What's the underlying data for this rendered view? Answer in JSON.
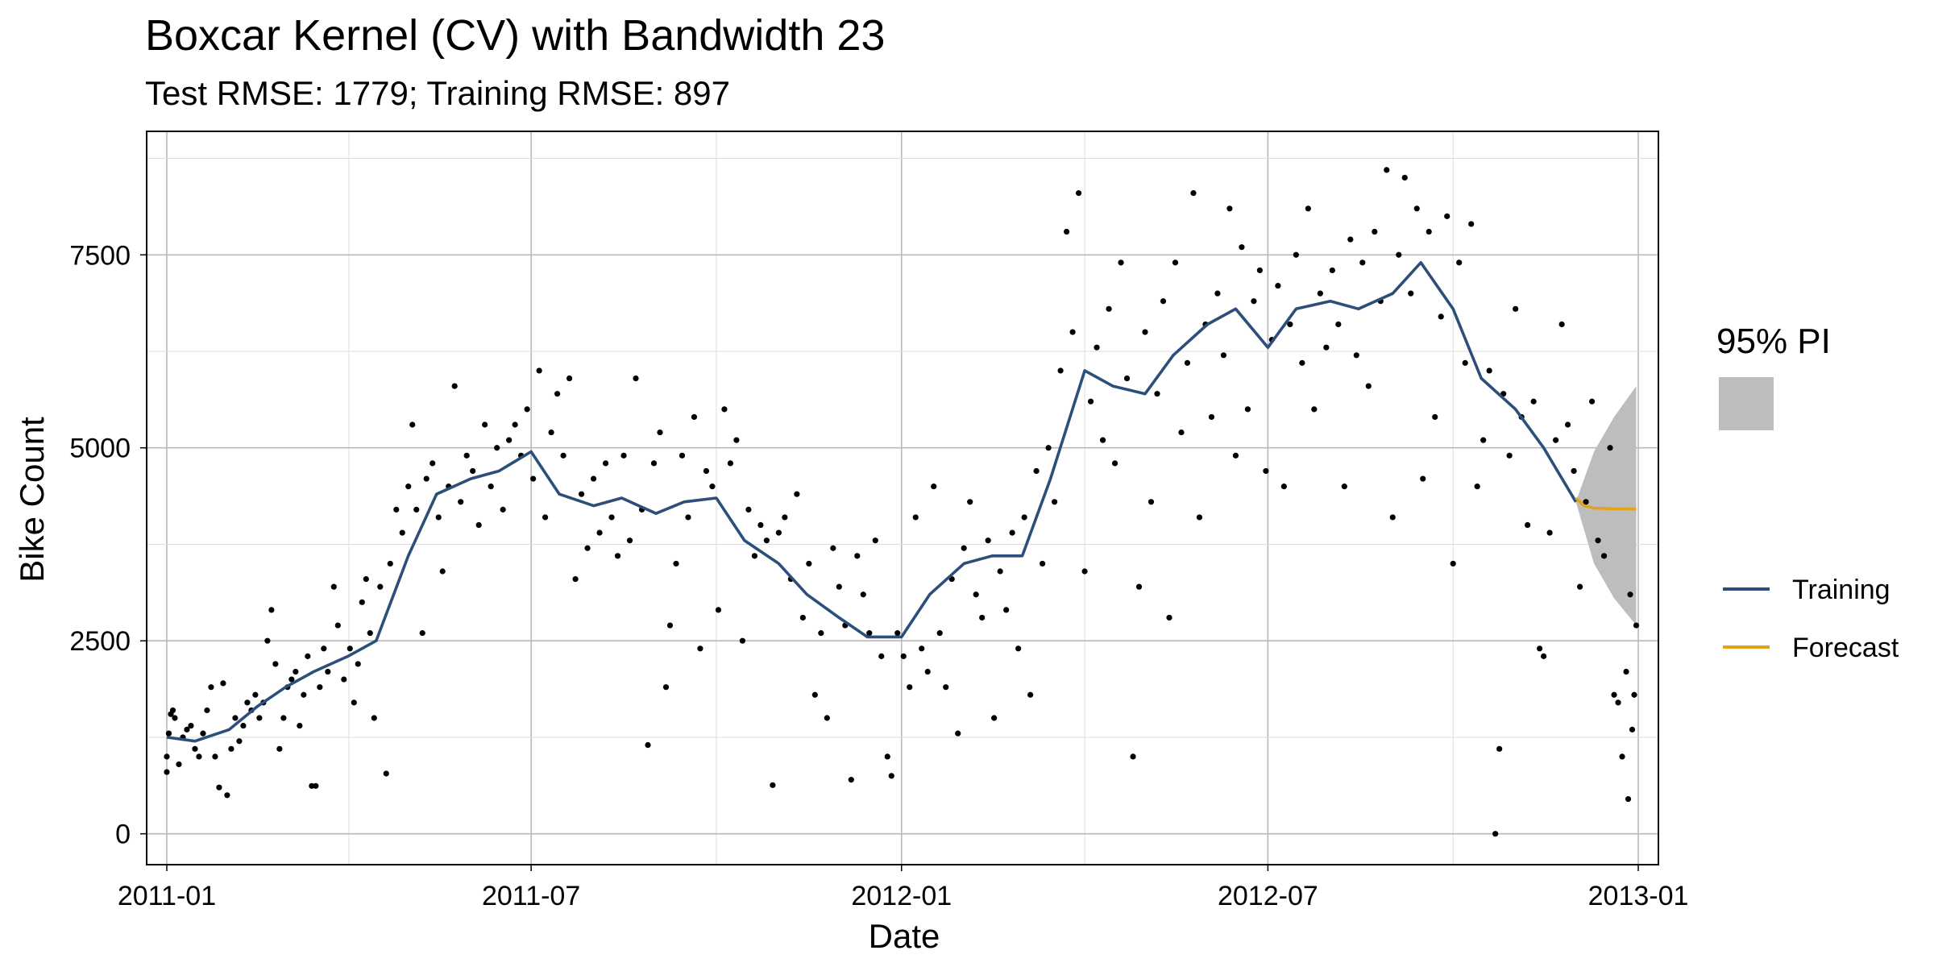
{
  "chart_data": {
    "type": "line",
    "title": "Boxcar Kernel (CV) with Bandwidth 23",
    "subtitle": "Test RMSE: 1779; Training RMSE: 897",
    "xlabel": "Date",
    "ylabel": "Bike Count",
    "x_ticks": [
      "2011-01",
      "2011-07",
      "2012-01",
      "2012-07",
      "2013-01"
    ],
    "y_ticks": [
      0,
      2500,
      5000,
      7500
    ],
    "xlim": [
      "2010-12-22",
      "2013-01-11"
    ],
    "ylim": [
      -400,
      9100
    ],
    "grid": true,
    "legend_position": "right",
    "interval_legend_title": "95% PI",
    "colors": {
      "training": "#2b4f7a",
      "forecast": "#e3a21a",
      "interval": "#bdbdbd",
      "points": "#000000"
    },
    "series": [
      {
        "name": "Training",
        "x": [
          "2011-01-01",
          "2011-01-15",
          "2011-02-01",
          "2011-02-15",
          "2011-03-01",
          "2011-03-15",
          "2011-04-01",
          "2011-04-15",
          "2011-05-01",
          "2011-05-15",
          "2011-06-01",
          "2011-06-15",
          "2011-07-01",
          "2011-07-15",
          "2011-08-01",
          "2011-08-15",
          "2011-09-01",
          "2011-09-15",
          "2011-10-01",
          "2011-10-15",
          "2011-11-01",
          "2011-11-15",
          "2011-12-01",
          "2011-12-15",
          "2012-01-01",
          "2012-01-15",
          "2012-02-01",
          "2012-02-15",
          "2012-03-01",
          "2012-03-15",
          "2012-04-01",
          "2012-04-15",
          "2012-05-01",
          "2012-05-15",
          "2012-06-01",
          "2012-06-15",
          "2012-07-01",
          "2012-07-15",
          "2012-08-01",
          "2012-08-15",
          "2012-09-01",
          "2012-09-15",
          "2012-10-01",
          "2012-10-15",
          "2012-11-01",
          "2012-11-15",
          "2012-12-01"
        ],
        "y": [
          1250,
          1200,
          1350,
          1650,
          1900,
          2100,
          2300,
          2500,
          3600,
          4400,
          4600,
          4700,
          4950,
          4400,
          4250,
          4350,
          4150,
          4300,
          4350,
          3800,
          3500,
          3100,
          2800,
          2550,
          2550,
          3100,
          3500,
          3600,
          3600,
          4600,
          6000,
          5800,
          5700,
          6200,
          6600,
          6800,
          6300,
          6800,
          6900,
          6800,
          7000,
          7400,
          6800,
          5900,
          5500,
          5000,
          4300
        ]
      },
      {
        "name": "Forecast",
        "x": [
          "2012-12-01",
          "2012-12-05",
          "2012-12-10",
          "2012-12-20",
          "2012-12-31"
        ],
        "y": [
          4350,
          4250,
          4220,
          4210,
          4210
        ]
      }
    ],
    "interval": {
      "x": [
        "2012-12-01",
        "2012-12-10",
        "2012-12-20",
        "2012-12-31"
      ],
      "lower": [
        4300,
        3500,
        3050,
        2700
      ],
      "upper": [
        4300,
        4950,
        5400,
        5800
      ]
    },
    "points": [
      [
        "2011-01-01",
        1000
      ],
      [
        "2011-01-01",
        800
      ],
      [
        "2011-01-02",
        1300
      ],
      [
        "2011-01-03",
        1550
      ],
      [
        "2011-01-04",
        1600
      ],
      [
        "2011-01-05",
        1500
      ],
      [
        "2011-01-07",
        900
      ],
      [
        "2011-01-09",
        1250
      ],
      [
        "2011-01-11",
        1350
      ],
      [
        "2011-01-13",
        1400
      ],
      [
        "2011-01-15",
        1100
      ],
      [
        "2011-01-17",
        1000
      ],
      [
        "2011-01-19",
        1300
      ],
      [
        "2011-01-21",
        1600
      ],
      [
        "2011-01-23",
        1900
      ],
      [
        "2011-01-25",
        1000
      ],
      [
        "2011-01-27",
        600
      ],
      [
        "2011-01-29",
        1950
      ],
      [
        "2011-01-31",
        500
      ],
      [
        "2011-02-02",
        1100
      ],
      [
        "2011-02-04",
        1500
      ],
      [
        "2011-02-06",
        1200
      ],
      [
        "2011-02-08",
        1400
      ],
      [
        "2011-02-10",
        1700
      ],
      [
        "2011-02-12",
        1600
      ],
      [
        "2011-02-14",
        1800
      ],
      [
        "2011-02-16",
        1500
      ],
      [
        "2011-02-18",
        1700
      ],
      [
        "2011-02-20",
        2500
      ],
      [
        "2011-02-22",
        2900
      ],
      [
        "2011-02-24",
        2200
      ],
      [
        "2011-02-26",
        1100
      ],
      [
        "2011-02-28",
        1500
      ],
      [
        "2011-03-02",
        1900
      ],
      [
        "2011-03-04",
        2000
      ],
      [
        "2011-03-06",
        2100
      ],
      [
        "2011-03-08",
        1400
      ],
      [
        "2011-03-10",
        1800
      ],
      [
        "2011-03-12",
        2300
      ],
      [
        "2011-03-14",
        620
      ],
      [
        "2011-03-16",
        620
      ],
      [
        "2011-03-18",
        1900
      ],
      [
        "2011-03-20",
        2400
      ],
      [
        "2011-03-22",
        2100
      ],
      [
        "2011-03-25",
        3200
      ],
      [
        "2011-03-27",
        2700
      ],
      [
        "2011-03-30",
        2000
      ],
      [
        "2011-04-02",
        2400
      ],
      [
        "2011-04-04",
        1700
      ],
      [
        "2011-04-06",
        2200
      ],
      [
        "2011-04-08",
        3000
      ],
      [
        "2011-04-10",
        3300
      ],
      [
        "2011-04-12",
        2600
      ],
      [
        "2011-04-14",
        1500
      ],
      [
        "2011-04-17",
        3200
      ],
      [
        "2011-04-20",
        780
      ],
      [
        "2011-04-22",
        3500
      ],
      [
        "2011-04-25",
        4200
      ],
      [
        "2011-04-28",
        3900
      ],
      [
        "2011-05-01",
        4500
      ],
      [
        "2011-05-03",
        5300
      ],
      [
        "2011-05-05",
        4200
      ],
      [
        "2011-05-08",
        2600
      ],
      [
        "2011-05-10",
        4600
      ],
      [
        "2011-05-13",
        4800
      ],
      [
        "2011-05-16",
        4100
      ],
      [
        "2011-05-18",
        3400
      ],
      [
        "2011-05-21",
        4500
      ],
      [
        "2011-05-24",
        5800
      ],
      [
        "2011-05-27",
        4300
      ],
      [
        "2011-05-30",
        4900
      ],
      [
        "2011-06-02",
        4700
      ],
      [
        "2011-06-05",
        4000
      ],
      [
        "2011-06-08",
        5300
      ],
      [
        "2011-06-11",
        4500
      ],
      [
        "2011-06-14",
        5000
      ],
      [
        "2011-06-17",
        4200
      ],
      [
        "2011-06-20",
        5100
      ],
      [
        "2011-06-23",
        5300
      ],
      [
        "2011-06-26",
        4900
      ],
      [
        "2011-06-29",
        5500
      ],
      [
        "2011-07-02",
        4600
      ],
      [
        "2011-07-05",
        6000
      ],
      [
        "2011-07-08",
        4100
      ],
      [
        "2011-07-11",
        5200
      ],
      [
        "2011-07-14",
        5700
      ],
      [
        "2011-07-17",
        4900
      ],
      [
        "2011-07-20",
        5900
      ],
      [
        "2011-07-23",
        3300
      ],
      [
        "2011-07-26",
        4400
      ],
      [
        "2011-07-29",
        3700
      ],
      [
        "2011-08-01",
        4600
      ],
      [
        "2011-08-04",
        3900
      ],
      [
        "2011-08-07",
        4800
      ],
      [
        "2011-08-10",
        4100
      ],
      [
        "2011-08-13",
        3600
      ],
      [
        "2011-08-16",
        4900
      ],
      [
        "2011-08-19",
        3800
      ],
      [
        "2011-08-22",
        5900
      ],
      [
        "2011-08-25",
        4200
      ],
      [
        "2011-08-28",
        1150
      ],
      [
        "2011-08-31",
        4800
      ],
      [
        "2011-09-03",
        5200
      ],
      [
        "2011-09-06",
        1900
      ],
      [
        "2011-09-08",
        2700
      ],
      [
        "2011-09-11",
        3500
      ],
      [
        "2011-09-14",
        4900
      ],
      [
        "2011-09-17",
        4100
      ],
      [
        "2011-09-20",
        5400
      ],
      [
        "2011-09-23",
        2400
      ],
      [
        "2011-09-26",
        4700
      ],
      [
        "2011-09-29",
        4500
      ],
      [
        "2011-10-02",
        2900
      ],
      [
        "2011-10-05",
        5500
      ],
      [
        "2011-10-08",
        4800
      ],
      [
        "2011-10-11",
        5100
      ],
      [
        "2011-10-14",
        2500
      ],
      [
        "2011-10-17",
        4200
      ],
      [
        "2011-10-20",
        3600
      ],
      [
        "2011-10-23",
        4000
      ],
      [
        "2011-10-26",
        3800
      ],
      [
        "2011-10-29",
        630
      ],
      [
        "2011-11-01",
        3900
      ],
      [
        "2011-11-04",
        4100
      ],
      [
        "2011-11-07",
        3300
      ],
      [
        "2011-11-10",
        4400
      ],
      [
        "2011-11-13",
        2800
      ],
      [
        "2011-11-16",
        3500
      ],
      [
        "2011-11-19",
        1800
      ],
      [
        "2011-11-22",
        2600
      ],
      [
        "2011-11-25",
        1500
      ],
      [
        "2011-11-28",
        3700
      ],
      [
        "2011-12-01",
        3200
      ],
      [
        "2011-12-04",
        2700
      ],
      [
        "2011-12-07",
        700
      ],
      [
        "2011-12-10",
        3600
      ],
      [
        "2011-12-13",
        3100
      ],
      [
        "2011-12-16",
        2600
      ],
      [
        "2011-12-19",
        3800
      ],
      [
        "2011-12-22",
        2300
      ],
      [
        "2011-12-25",
        1000
      ],
      [
        "2011-12-27",
        750
      ],
      [
        "2011-12-30",
        2600
      ],
      [
        "2012-01-02",
        2300
      ],
      [
        "2012-01-05",
        1900
      ],
      [
        "2012-01-08",
        4100
      ],
      [
        "2012-01-11",
        2400
      ],
      [
        "2012-01-14",
        2100
      ],
      [
        "2012-01-17",
        4500
      ],
      [
        "2012-01-20",
        2600
      ],
      [
        "2012-01-23",
        1900
      ],
      [
        "2012-01-26",
        3300
      ],
      [
        "2012-01-29",
        1300
      ],
      [
        "2012-02-01",
        3700
      ],
      [
        "2012-02-04",
        4300
      ],
      [
        "2012-02-07",
        3100
      ],
      [
        "2012-02-10",
        2800
      ],
      [
        "2012-02-13",
        3800
      ],
      [
        "2012-02-16",
        1500
      ],
      [
        "2012-02-19",
        3400
      ],
      [
        "2012-02-22",
        2900
      ],
      [
        "2012-02-25",
        3900
      ],
      [
        "2012-02-28",
        2400
      ],
      [
        "2012-03-02",
        4100
      ],
      [
        "2012-03-05",
        1800
      ],
      [
        "2012-03-08",
        4700
      ],
      [
        "2012-03-11",
        3500
      ],
      [
        "2012-03-14",
        5000
      ],
      [
        "2012-03-17",
        4300
      ],
      [
        "2012-03-20",
        6000
      ],
      [
        "2012-03-23",
        7800
      ],
      [
        "2012-03-26",
        6500
      ],
      [
        "2012-03-29",
        8300
      ],
      [
        "2012-04-01",
        3400
      ],
      [
        "2012-04-04",
        5600
      ],
      [
        "2012-04-07",
        6300
      ],
      [
        "2012-04-10",
        5100
      ],
      [
        "2012-04-13",
        6800
      ],
      [
        "2012-04-16",
        4800
      ],
      [
        "2012-04-19",
        7400
      ],
      [
        "2012-04-22",
        5900
      ],
      [
        "2012-04-25",
        1000
      ],
      [
        "2012-04-28",
        3200
      ],
      [
        "2012-05-01",
        6500
      ],
      [
        "2012-05-04",
        4300
      ],
      [
        "2012-05-07",
        5700
      ],
      [
        "2012-05-10",
        6900
      ],
      [
        "2012-05-13",
        2800
      ],
      [
        "2012-05-16",
        7400
      ],
      [
        "2012-05-19",
        5200
      ],
      [
        "2012-05-22",
        6100
      ],
      [
        "2012-05-25",
        8300
      ],
      [
        "2012-05-28",
        4100
      ],
      [
        "2012-05-31",
        6600
      ],
      [
        "2012-06-03",
        5400
      ],
      [
        "2012-06-06",
        7000
      ],
      [
        "2012-06-09",
        6200
      ],
      [
        "2012-06-12",
        8100
      ],
      [
        "2012-06-15",
        4900
      ],
      [
        "2012-06-18",
        7600
      ],
      [
        "2012-06-21",
        5500
      ],
      [
        "2012-06-24",
        6900
      ],
      [
        "2012-06-27",
        7300
      ],
      [
        "2012-06-30",
        4700
      ],
      [
        "2012-07-03",
        6400
      ],
      [
        "2012-07-06",
        7100
      ],
      [
        "2012-07-09",
        4500
      ],
      [
        "2012-07-12",
        6600
      ],
      [
        "2012-07-15",
        7500
      ],
      [
        "2012-07-18",
        6100
      ],
      [
        "2012-07-21",
        8100
      ],
      [
        "2012-07-24",
        5500
      ],
      [
        "2012-07-27",
        7000
      ],
      [
        "2012-07-30",
        6300
      ],
      [
        "2012-08-02",
        7300
      ],
      [
        "2012-08-05",
        6600
      ],
      [
        "2012-08-08",
        4500
      ],
      [
        "2012-08-11",
        7700
      ],
      [
        "2012-08-14",
        6200
      ],
      [
        "2012-08-17",
        7400
      ],
      [
        "2012-08-20",
        5800
      ],
      [
        "2012-08-23",
        7800
      ],
      [
        "2012-08-26",
        6900
      ],
      [
        "2012-08-29",
        8600
      ],
      [
        "2012-09-01",
        4100
      ],
      [
        "2012-09-04",
        7500
      ],
      [
        "2012-09-07",
        8500
      ],
      [
        "2012-09-10",
        7000
      ],
      [
        "2012-09-13",
        8100
      ],
      [
        "2012-09-16",
        4600
      ],
      [
        "2012-09-19",
        7800
      ],
      [
        "2012-09-22",
        5400
      ],
      [
        "2012-09-25",
        6700
      ],
      [
        "2012-09-28",
        8000
      ],
      [
        "2012-10-01",
        3500
      ],
      [
        "2012-10-04",
        7400
      ],
      [
        "2012-10-07",
        6100
      ],
      [
        "2012-10-10",
        7900
      ],
      [
        "2012-10-13",
        4500
      ],
      [
        "2012-10-16",
        5100
      ],
      [
        "2012-10-19",
        6000
      ],
      [
        "2012-10-22",
        0
      ],
      [
        "2012-10-24",
        1100
      ],
      [
        "2012-10-26",
        5700
      ],
      [
        "2012-10-29",
        4900
      ],
      [
        "2012-11-01",
        6800
      ],
      [
        "2012-11-04",
        5400
      ],
      [
        "2012-11-07",
        4000
      ],
      [
        "2012-11-10",
        5600
      ],
      [
        "2012-11-13",
        2400
      ],
      [
        "2012-11-15",
        2300
      ],
      [
        "2012-11-18",
        3900
      ],
      [
        "2012-11-21",
        5100
      ],
      [
        "2012-11-24",
        6600
      ],
      [
        "2012-11-27",
        5300
      ],
      [
        "2012-11-30",
        4700
      ],
      [
        "2012-12-03",
        3200
      ],
      [
        "2012-12-06",
        4300
      ],
      [
        "2012-12-09",
        5600
      ],
      [
        "2012-12-12",
        3800
      ],
      [
        "2012-12-15",
        3600
      ],
      [
        "2012-12-18",
        5000
      ],
      [
        "2012-12-20",
        1800
      ],
      [
        "2012-12-22",
        1700
      ],
      [
        "2012-12-24",
        1000
      ],
      [
        "2012-12-26",
        2100
      ],
      [
        "2012-12-27",
        450
      ],
      [
        "2012-12-28",
        3100
      ],
      [
        "2012-12-29",
        1350
      ],
      [
        "2012-12-30",
        1800
      ],
      [
        "2012-12-31",
        2700
      ]
    ]
  }
}
